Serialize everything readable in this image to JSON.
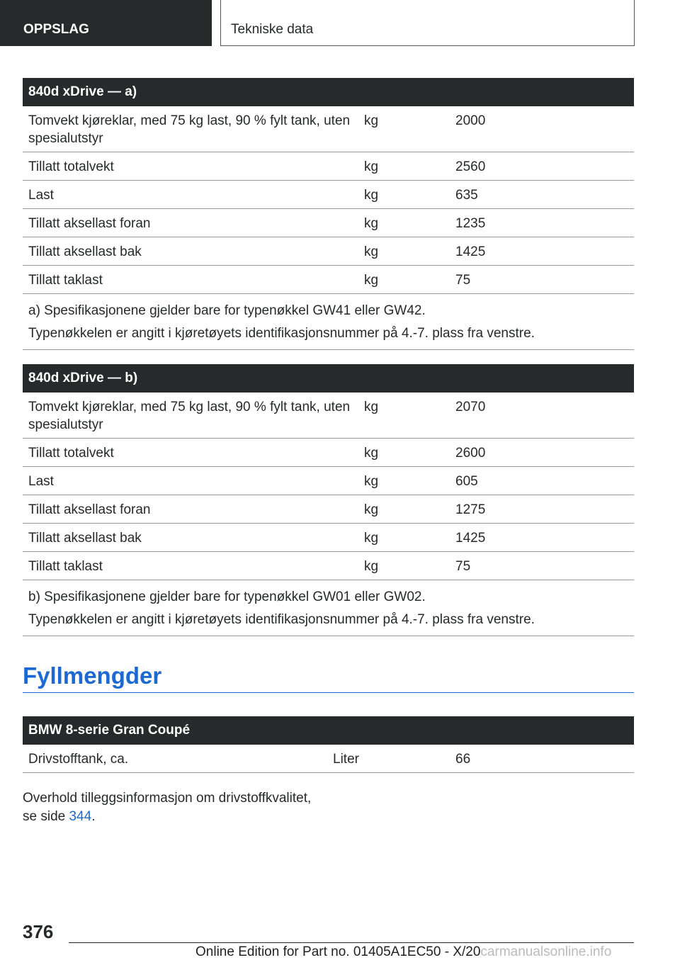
{
  "header": {
    "section": "OPPSLAG",
    "chapter": "Tekniske data"
  },
  "tables": [
    {
      "title": "840d xDrive — a)",
      "rows": [
        {
          "label": "Tomvekt kjøreklar, med 75 kg last, 90 % fylt tank, uten spesialutstyr",
          "unit": "kg",
          "value": "2000"
        },
        {
          "label": "Tillatt totalvekt",
          "unit": "kg",
          "value": "2560"
        },
        {
          "label": "Last",
          "unit": "kg",
          "value": "635"
        },
        {
          "label": "Tillatt aksellast foran",
          "unit": "kg",
          "value": "1235"
        },
        {
          "label": "Tillatt aksellast bak",
          "unit": "kg",
          "value": "1425"
        },
        {
          "label": "Tillatt taklast",
          "unit": "kg",
          "value": "75"
        }
      ],
      "notes": [
        "a) Spesifikasjonene gjelder bare for typenøkkel GW41 eller GW42.",
        "Typenøkkelen er angitt i kjøretøyets identifikasjonsnummer på 4.-7. plass fra venstre."
      ]
    },
    {
      "title": "840d xDrive — b)",
      "rows": [
        {
          "label": "Tomvekt kjøreklar, med 75 kg last, 90 % fylt tank, uten spesialutstyr",
          "unit": "kg",
          "value": "2070"
        },
        {
          "label": "Tillatt totalvekt",
          "unit": "kg",
          "value": "2600"
        },
        {
          "label": "Last",
          "unit": "kg",
          "value": "605"
        },
        {
          "label": "Tillatt aksellast foran",
          "unit": "kg",
          "value": "1275"
        },
        {
          "label": "Tillatt aksellast bak",
          "unit": "kg",
          "value": "1425"
        },
        {
          "label": "Tillatt taklast",
          "unit": "kg",
          "value": "75"
        }
      ],
      "notes": [
        "b) Spesifikasjonene gjelder bare for typenøkkel GW01 eller GW02.",
        "Typenøkkelen er angitt i kjøretøyets identifikasjonsnummer på 4.-7. plass fra venstre."
      ]
    }
  ],
  "section_title": "Fyllmengder",
  "fuel_table": {
    "title": "BMW 8-serie Gran Coupé",
    "rows": [
      {
        "label": "Drivstofftank, ca.",
        "unit": "Liter",
        "value": "66"
      }
    ]
  },
  "paragraph": {
    "text1": "Overhold tilleggsinformasjon om drivstoffkvalitet,",
    "text2": "se side ",
    "link": "344",
    "text3": "."
  },
  "footer": {
    "page_number": "376",
    "edition": "Online Edition for Part no. 01405A1EC50 - X/20",
    "watermark": "carmanualsonline.info"
  }
}
